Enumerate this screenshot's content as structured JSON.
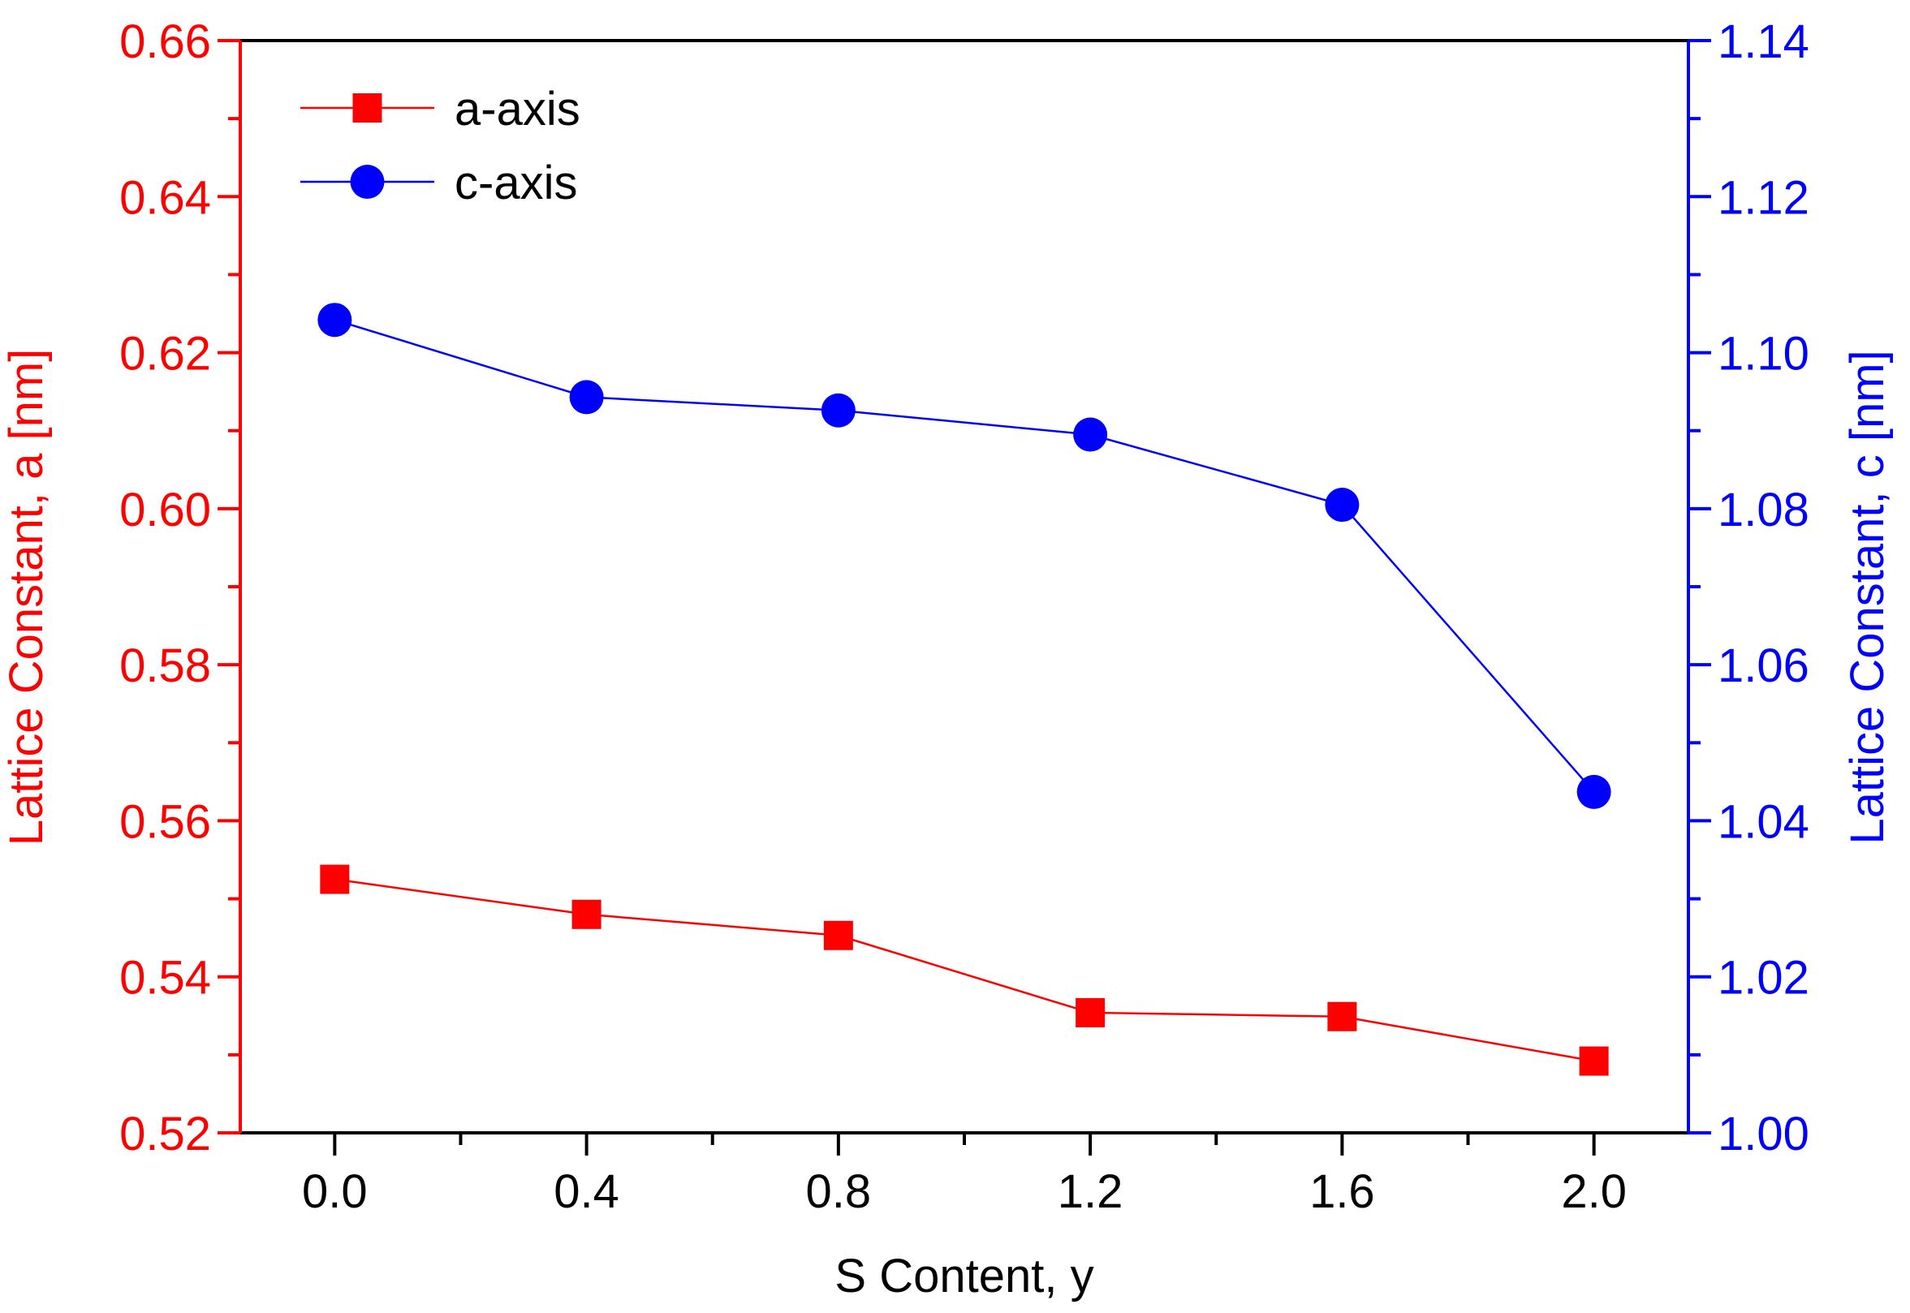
{
  "chart_data": {
    "type": "line",
    "xlabel": "S Content, y",
    "ylabel_left": "Lattice Constant, a [nm]",
    "ylabel_right": "Lattice Constant, c [nm]",
    "xlim": [
      -0.15,
      2.15
    ],
    "x_ticks": [
      0.0,
      0.4,
      0.8,
      1.2,
      1.6,
      2.0
    ],
    "x_tick_labels": [
      "0.0",
      "0.4",
      "0.8",
      "1.2",
      "1.6",
      "2.0"
    ],
    "ylim_left": [
      0.52,
      0.66
    ],
    "y_ticks_left": [
      0.52,
      0.54,
      0.56,
      0.58,
      0.6,
      0.62,
      0.64,
      0.66
    ],
    "y_tick_labels_left": [
      "0.52",
      "0.54",
      "0.56",
      "0.58",
      "0.60",
      "0.62",
      "0.64",
      "0.66"
    ],
    "ylim_right": [
      1.0,
      1.14
    ],
    "y_ticks_right": [
      1.0,
      1.02,
      1.04,
      1.06,
      1.08,
      1.1,
      1.12,
      1.14
    ],
    "y_tick_labels_right": [
      "1.00",
      "1.02",
      "1.04",
      "1.06",
      "1.08",
      "1.10",
      "1.12",
      "1.14"
    ],
    "grid": false,
    "legend_position": "top-left",
    "series": [
      {
        "name": "a-axis",
        "axis": "left",
        "marker": "square",
        "color": "#ff0000",
        "x": [
          0.0,
          0.4,
          0.8,
          1.2,
          1.6,
          2.0
        ],
        "y": [
          0.5525,
          0.548,
          0.5453,
          0.5354,
          0.5349,
          0.5292
        ]
      },
      {
        "name": "c-axis",
        "axis": "right",
        "marker": "circle",
        "color": "#0000ff",
        "x": [
          0.0,
          0.4,
          0.8,
          1.2,
          1.6,
          2.0
        ],
        "y": [
          1.1042,
          1.0943,
          1.0926,
          1.0895,
          1.0805,
          1.0437
        ]
      }
    ]
  }
}
